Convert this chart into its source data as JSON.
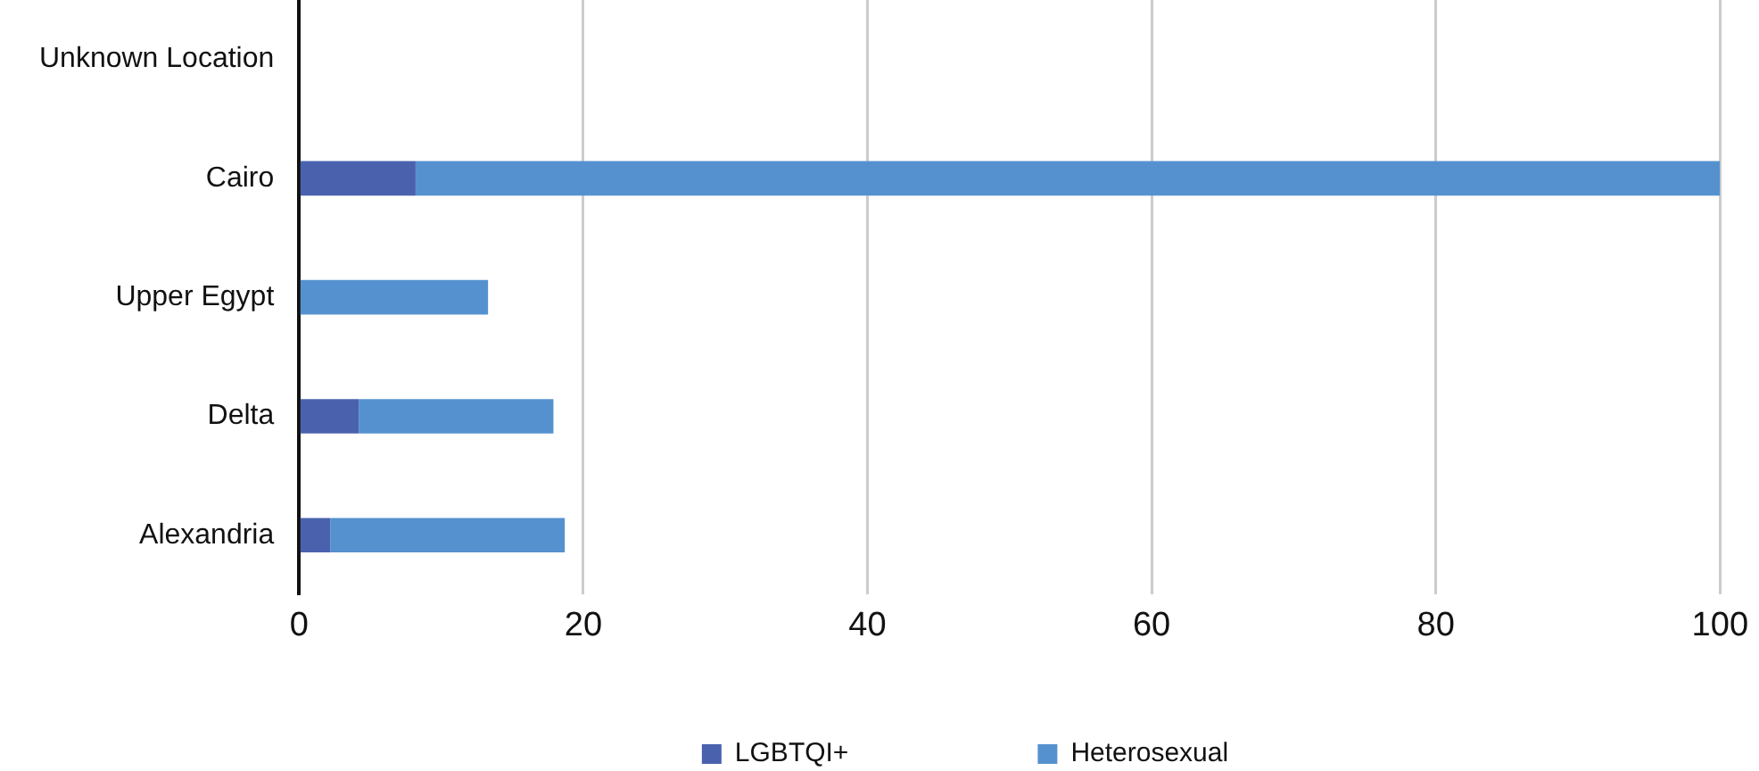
{
  "chart_data": {
    "type": "bar",
    "orientation": "horizontal",
    "stacked": true,
    "categories": [
      "Unknown Location",
      "Cairo",
      "Upper Egypt",
      "Delta",
      "Alexandria"
    ],
    "series": [
      {
        "name": "LGBTQI+",
        "color": "#4a62ae",
        "values": [
          0,
          8.2,
          0,
          4.2,
          2.2
        ]
      },
      {
        "name": "Heterosexual",
        "color": "#5591cf",
        "values": [
          0,
          91.8,
          13.3,
          13.7,
          16.5
        ]
      }
    ],
    "xlim": [
      0,
      100
    ],
    "xticks": [
      0,
      20,
      40,
      60,
      80,
      100
    ],
    "grid": "x",
    "legend": "bottom"
  }
}
